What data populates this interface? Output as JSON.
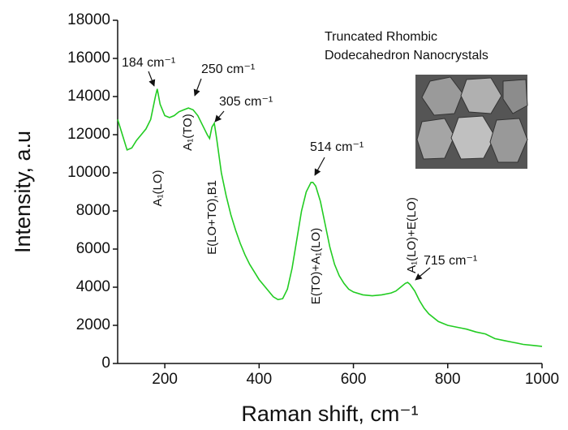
{
  "chart_data": {
    "type": "line",
    "x_label": "Raman shift, cm⁻¹",
    "y_label": "Intensity, a.u",
    "inset_title": [
      "Truncated Rhombic",
      "Dodecahedron Nanocrystals"
    ],
    "xlim": [
      100,
      1000
    ],
    "xticks": [
      200,
      400,
      600,
      800,
      1000
    ],
    "ylim": [
      0,
      18000
    ],
    "yticks": [
      0,
      2000,
      4000,
      6000,
      8000,
      10000,
      12000,
      14000,
      16000,
      18000
    ],
    "x": [
      100,
      110,
      120,
      130,
      140,
      150,
      160,
      170,
      180,
      184,
      190,
      200,
      210,
      220,
      230,
      240,
      250,
      260,
      270,
      280,
      290,
      295,
      300,
      305,
      310,
      320,
      330,
      340,
      350,
      360,
      370,
      380,
      390,
      400,
      410,
      420,
      430,
      440,
      450,
      460,
      470,
      480,
      490,
      500,
      510,
      514,
      520,
      530,
      540,
      550,
      560,
      570,
      580,
      590,
      600,
      620,
      640,
      660,
      680,
      690,
      700,
      710,
      715,
      720,
      730,
      740,
      750,
      760,
      780,
      800,
      820,
      830,
      840,
      860,
      880,
      900,
      920,
      940,
      960,
      980,
      1000
    ],
    "series": [
      {
        "color": "#22cc22",
        "values": [
          12800,
          12000,
          11200,
          11300,
          11700,
          12000,
          12300,
          12800,
          14000,
          14400,
          13600,
          13000,
          12900,
          13000,
          13200,
          13300,
          13400,
          13300,
          13000,
          12500,
          12000,
          11800,
          12400,
          12600,
          11800,
          10000,
          8800,
          7800,
          7000,
          6300,
          5700,
          5200,
          4800,
          4400,
          4100,
          3800,
          3500,
          3350,
          3400,
          3900,
          5000,
          6500,
          8000,
          9000,
          9500,
          9500,
          9300,
          8500,
          7300,
          6100,
          5200,
          4600,
          4200,
          3900,
          3750,
          3600,
          3550,
          3600,
          3700,
          3800,
          4000,
          4200,
          4250,
          4150,
          3800,
          3300,
          2900,
          2600,
          2200,
          2000,
          1900,
          1850,
          1800,
          1650,
          1550,
          1300,
          1200,
          1100,
          1000,
          950,
          900
        ]
      }
    ],
    "peak_labels": [
      "184 cm⁻¹",
      "250 cm⁻¹",
      "305 cm⁻¹",
      "514 cm⁻¹",
      "715 cm⁻¹"
    ],
    "mode_labels": [
      "A₁(LO)",
      "A₁(TO)",
      "E(LO+TO),B1",
      "E(TO)+A₁(LO)",
      "A₁(LO)+E(LO)"
    ]
  }
}
